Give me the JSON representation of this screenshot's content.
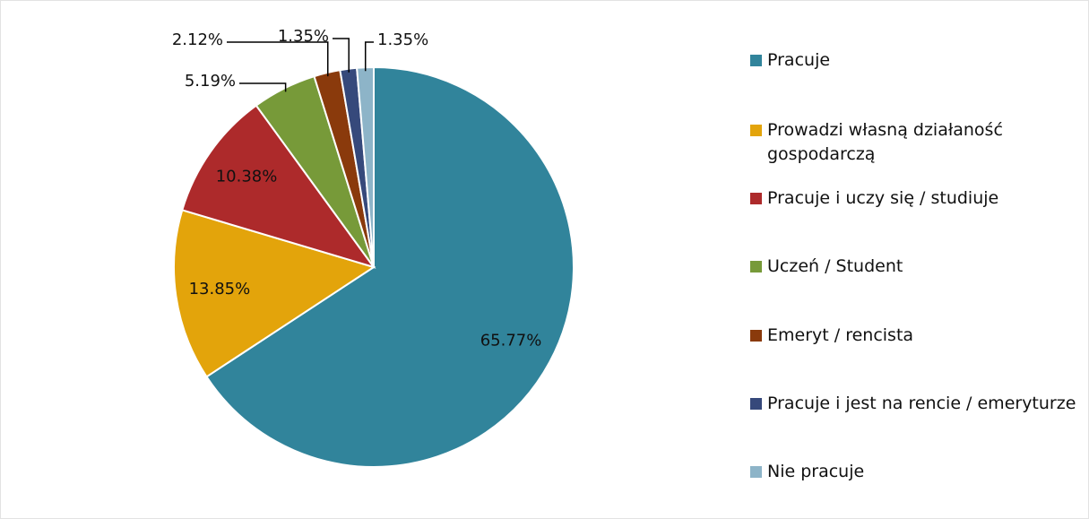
{
  "chart_data": {
    "type": "pie",
    "categories": [
      "Pracuje",
      "Prowadzi własną działaność gospodarczą",
      "Pracuje i uczy się / studiuje",
      "Uczeń / Student",
      "Emeryt / rencista",
      "Pracuje i jest na rencie / emeryturze",
      "Nie pracuje"
    ],
    "values": [
      65.77,
      13.85,
      10.38,
      5.19,
      2.12,
      1.35,
      1.35
    ],
    "value_labels": [
      "65.77%",
      "13.85%",
      "10.38%",
      "5.19%",
      "2.12%",
      "1.35%",
      "1.35%"
    ],
    "colors": [
      "#31849b",
      "#e3a40b",
      "#ad2a2b",
      "#779a39",
      "#8a3a0c",
      "#36497b",
      "#8db4c8"
    ],
    "legend": "right"
  }
}
